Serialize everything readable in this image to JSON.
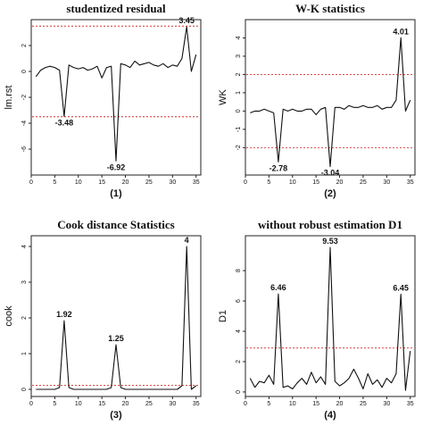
{
  "chart_data": [
    {
      "type": "line",
      "title": "studentized residual",
      "panel_label": "(1)",
      "ylabel": "lm.rst",
      "xlim": [
        0,
        36
      ],
      "ylim": [
        -8,
        4
      ],
      "xticks": [
        "0",
        "5",
        "10",
        "15",
        "20",
        "25",
        "30",
        "35"
      ],
      "yticks": [
        "-6",
        "-4",
        "-2",
        "0",
        "2"
      ],
      "x": [
        1,
        2,
        3,
        4,
        5,
        6,
        7,
        8,
        9,
        10,
        11,
        12,
        13,
        14,
        15,
        16,
        17,
        18,
        19,
        20,
        21,
        22,
        23,
        24,
        25,
        26,
        27,
        28,
        29,
        30,
        31,
        32,
        33,
        34,
        35
      ],
      "values": [
        -0.4,
        0.1,
        0.3,
        0.4,
        0.3,
        0.1,
        -3.48,
        0.5,
        0.3,
        0.2,
        0.3,
        0.1,
        0.2,
        0.4,
        -0.5,
        0.3,
        0.4,
        -6.92,
        0.6,
        0.5,
        0.3,
        0.8,
        0.5,
        0.6,
        0.7,
        0.5,
        0.4,
        0.6,
        0.3,
        0.5,
        0.4,
        1.0,
        3.45,
        0.0,
        1.3
      ],
      "hlines": [
        3.5,
        -3.5
      ],
      "annotations": [
        {
          "x": 7,
          "y": -3.48,
          "text": "-3.48"
        },
        {
          "x": 18,
          "y": -6.92,
          "text": "-6.92"
        },
        {
          "x": 33,
          "y": 3.45,
          "text": "3.45"
        }
      ]
    },
    {
      "type": "line",
      "title": "W-K statistics",
      "panel_label": "(2)",
      "ylabel": "WK",
      "xlim": [
        0,
        36
      ],
      "ylim": [
        -3.5,
        5
      ],
      "xticks": [
        "0",
        "5",
        "10",
        "15",
        "20",
        "25",
        "30",
        "35"
      ],
      "yticks": [
        "-2",
        "-1",
        "0",
        "1",
        "2",
        "3",
        "4"
      ],
      "x": [
        1,
        2,
        3,
        4,
        5,
        6,
        7,
        8,
        9,
        10,
        11,
        12,
        13,
        14,
        15,
        16,
        17,
        18,
        19,
        20,
        21,
        22,
        23,
        24,
        25,
        26,
        27,
        28,
        29,
        30,
        31,
        32,
        33,
        34,
        35
      ],
      "values": [
        -0.1,
        0.0,
        0.0,
        0.1,
        0.0,
        -0.1,
        -2.78,
        0.1,
        0.0,
        0.1,
        0.0,
        0.0,
        0.1,
        0.1,
        -0.2,
        0.1,
        0.2,
        -3.04,
        0.2,
        0.2,
        0.1,
        0.3,
        0.2,
        0.2,
        0.3,
        0.2,
        0.2,
        0.3,
        0.1,
        0.2,
        0.2,
        0.6,
        4.01,
        0.0,
        0.6
      ],
      "hlines": [
        2,
        -2
      ],
      "annotations": [
        {
          "x": 7,
          "y": -2.78,
          "text": "-2.78"
        },
        {
          "x": 18,
          "y": -3.04,
          "text": "-3.04"
        },
        {
          "x": 33,
          "y": 4.01,
          "text": "4.01"
        }
      ]
    },
    {
      "type": "line",
      "title": "Cook distance Statistics",
      "panel_label": "(3)",
      "ylabel": "cook",
      "xlim": [
        0,
        36
      ],
      "ylim": [
        -0.2,
        4.3
      ],
      "xticks": [
        "0",
        "5",
        "10",
        "15",
        "20",
        "25",
        "30",
        "35"
      ],
      "yticks": [
        "0",
        "1",
        "2",
        "3",
        "4"
      ],
      "x": [
        1,
        2,
        3,
        4,
        5,
        6,
        7,
        8,
        9,
        10,
        11,
        12,
        13,
        14,
        15,
        16,
        17,
        18,
        19,
        20,
        21,
        22,
        23,
        24,
        25,
        26,
        27,
        28,
        29,
        30,
        31,
        32,
        33,
        34,
        35
      ],
      "values": [
        0,
        0,
        0,
        0,
        0,
        0.05,
        1.92,
        0.05,
        0,
        0,
        0,
        0,
        0,
        0,
        0,
        0,
        0.05,
        1.25,
        0.05,
        0,
        0,
        0,
        0,
        0,
        0,
        0,
        0,
        0,
        0,
        0,
        0,
        0.1,
        4,
        0,
        0.1
      ],
      "hlines": [
        0.11
      ],
      "annotations": [
        {
          "x": 7,
          "y": 1.92,
          "text": "1.92"
        },
        {
          "x": 18,
          "y": 1.25,
          "text": "1.25"
        },
        {
          "x": 33,
          "y": 4,
          "text": "4"
        }
      ]
    },
    {
      "type": "line",
      "title": "without robust estimation D1",
      "panel_label": "(4)",
      "ylabel": "D1",
      "xlim": [
        0,
        36
      ],
      "ylim": [
        -0.3,
        10.3
      ],
      "xticks": [
        "0",
        "5",
        "10",
        "15",
        "20",
        "25",
        "30",
        "35"
      ],
      "yticks": [
        "0",
        "2",
        "4",
        "6",
        "8"
      ],
      "x": [
        1,
        2,
        3,
        4,
        5,
        6,
        7,
        8,
        9,
        10,
        11,
        12,
        13,
        14,
        15,
        16,
        17,
        18,
        19,
        20,
        21,
        22,
        23,
        24,
        25,
        26,
        27,
        28,
        29,
        30,
        31,
        32,
        33,
        34,
        35
      ],
      "values": [
        0.9,
        0.3,
        0.7,
        0.6,
        1.1,
        0.5,
        6.46,
        0.3,
        0.4,
        0.2,
        0.6,
        0.9,
        0.5,
        1.3,
        0.6,
        1.0,
        0.5,
        9.53,
        0.7,
        0.4,
        0.6,
        0.9,
        1.5,
        0.9,
        0.2,
        1.2,
        0.5,
        0.8,
        0.3,
        0.9,
        0.6,
        1.2,
        6.45,
        0.1,
        2.7
      ],
      "hlines": [
        2.9
      ],
      "annotations": [
        {
          "x": 7,
          "y": 6.46,
          "text": "6.46"
        },
        {
          "x": 18,
          "y": 9.53,
          "text": "9.53"
        },
        {
          "x": 33,
          "y": 6.45,
          "text": "6.45"
        }
      ]
    }
  ],
  "colors": {
    "line": "#111111",
    "threshold": "#d03030",
    "axis": "#222222"
  }
}
